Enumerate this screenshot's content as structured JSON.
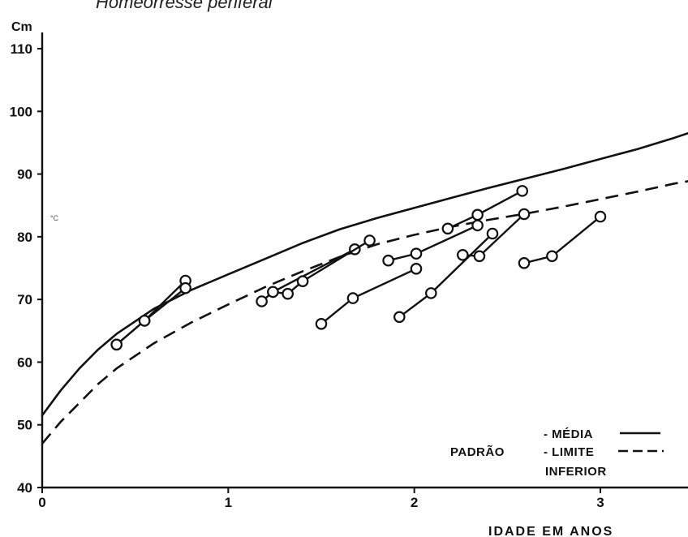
{
  "chart_data": {
    "type": "line",
    "title": "Homeorresse periferal",
    "y_unit_label": "Cm",
    "xlabel": "IDADE EM ANOS",
    "xlim": [
      0,
      3.5
    ],
    "ylim": [
      40,
      115
    ],
    "x_ticks": [
      0,
      1,
      2,
      3
    ],
    "y_ticks": [
      40,
      50,
      60,
      70,
      80,
      90,
      100,
      110
    ],
    "grid": false,
    "legend_position": "bottom-right",
    "legend": {
      "group_label": "PADRÃO",
      "items": [
        {
          "label": "- MÉDIA",
          "style": "solid"
        },
        {
          "label": "- LIMITE",
          "style": "dashed"
        }
      ],
      "continuation": "INFERIOR"
    },
    "annotation": "°C",
    "standard_curves": [
      {
        "key": "media",
        "style": "solid",
        "points": [
          [
            0,
            51.5
          ],
          [
            0.1,
            55.5
          ],
          [
            0.2,
            59
          ],
          [
            0.3,
            62
          ],
          [
            0.4,
            64.5
          ],
          [
            0.6,
            68.5
          ],
          [
            0.8,
            71.5
          ],
          [
            1.0,
            74
          ],
          [
            1.2,
            76.5
          ],
          [
            1.4,
            79
          ],
          [
            1.6,
            81.2
          ],
          [
            1.8,
            83
          ],
          [
            2.0,
            84.6
          ],
          [
            2.2,
            86.2
          ],
          [
            2.4,
            87.8
          ],
          [
            2.6,
            89.3
          ],
          [
            2.8,
            90.8
          ],
          [
            3.0,
            92.4
          ],
          [
            3.2,
            94
          ],
          [
            3.4,
            95.8
          ],
          [
            3.5,
            96.8
          ]
        ]
      },
      {
        "key": "limite_inferior",
        "style": "dashed",
        "points": [
          [
            0,
            47
          ],
          [
            0.1,
            50.5
          ],
          [
            0.2,
            53.5
          ],
          [
            0.3,
            56.5
          ],
          [
            0.4,
            59
          ],
          [
            0.6,
            63
          ],
          [
            0.8,
            66.3
          ],
          [
            1.0,
            69.2
          ],
          [
            1.2,
            72
          ],
          [
            1.4,
            74.5
          ],
          [
            1.6,
            76.8
          ],
          [
            1.8,
            78.8
          ],
          [
            2.0,
            80.3
          ],
          [
            2.2,
            81.6
          ],
          [
            2.4,
            82.7
          ],
          [
            2.6,
            83.7
          ],
          [
            2.8,
            84.8
          ],
          [
            3.0,
            86
          ],
          [
            3.2,
            87.2
          ],
          [
            3.4,
            88.5
          ],
          [
            3.5,
            89
          ]
        ]
      }
    ],
    "patients": [
      {
        "points": [
          [
            0.4,
            62.8
          ],
          [
            0.55,
            66.6
          ],
          [
            0.77,
            73.0
          ]
        ]
      },
      {
        "points": [
          [
            0.4,
            62.8
          ],
          [
            0.55,
            66.6
          ],
          [
            0.77,
            71.8
          ]
        ]
      },
      {
        "points": [
          [
            1.18,
            69.7
          ],
          [
            1.24,
            71.2
          ],
          [
            1.68,
            78.0
          ]
        ]
      },
      {
        "points": [
          [
            1.24,
            71.2
          ],
          [
            1.32,
            70.9
          ],
          [
            1.4,
            72.9
          ],
          [
            1.76,
            79.4
          ]
        ]
      },
      {
        "points": [
          [
            1.5,
            66.1
          ],
          [
            1.67,
            70.2
          ],
          [
            2.01,
            74.9
          ]
        ]
      },
      {
        "points": [
          [
            1.86,
            76.2
          ],
          [
            2.01,
            77.3
          ],
          [
            2.34,
            81.8
          ]
        ]
      },
      {
        "points": [
          [
            1.92,
            67.2
          ],
          [
            2.09,
            71.0
          ],
          [
            2.42,
            80.5
          ]
        ]
      },
      {
        "points": [
          [
            2.18,
            81.3
          ],
          [
            2.34,
            83.5
          ],
          [
            2.58,
            87.3
          ]
        ]
      },
      {
        "points": [
          [
            2.26,
            77.1
          ],
          [
            2.35,
            76.9
          ],
          [
            2.59,
            83.6
          ]
        ]
      },
      {
        "points": [
          [
            2.59,
            75.8
          ],
          [
            2.74,
            76.9
          ],
          [
            3.0,
            83.2
          ]
        ]
      }
    ]
  }
}
